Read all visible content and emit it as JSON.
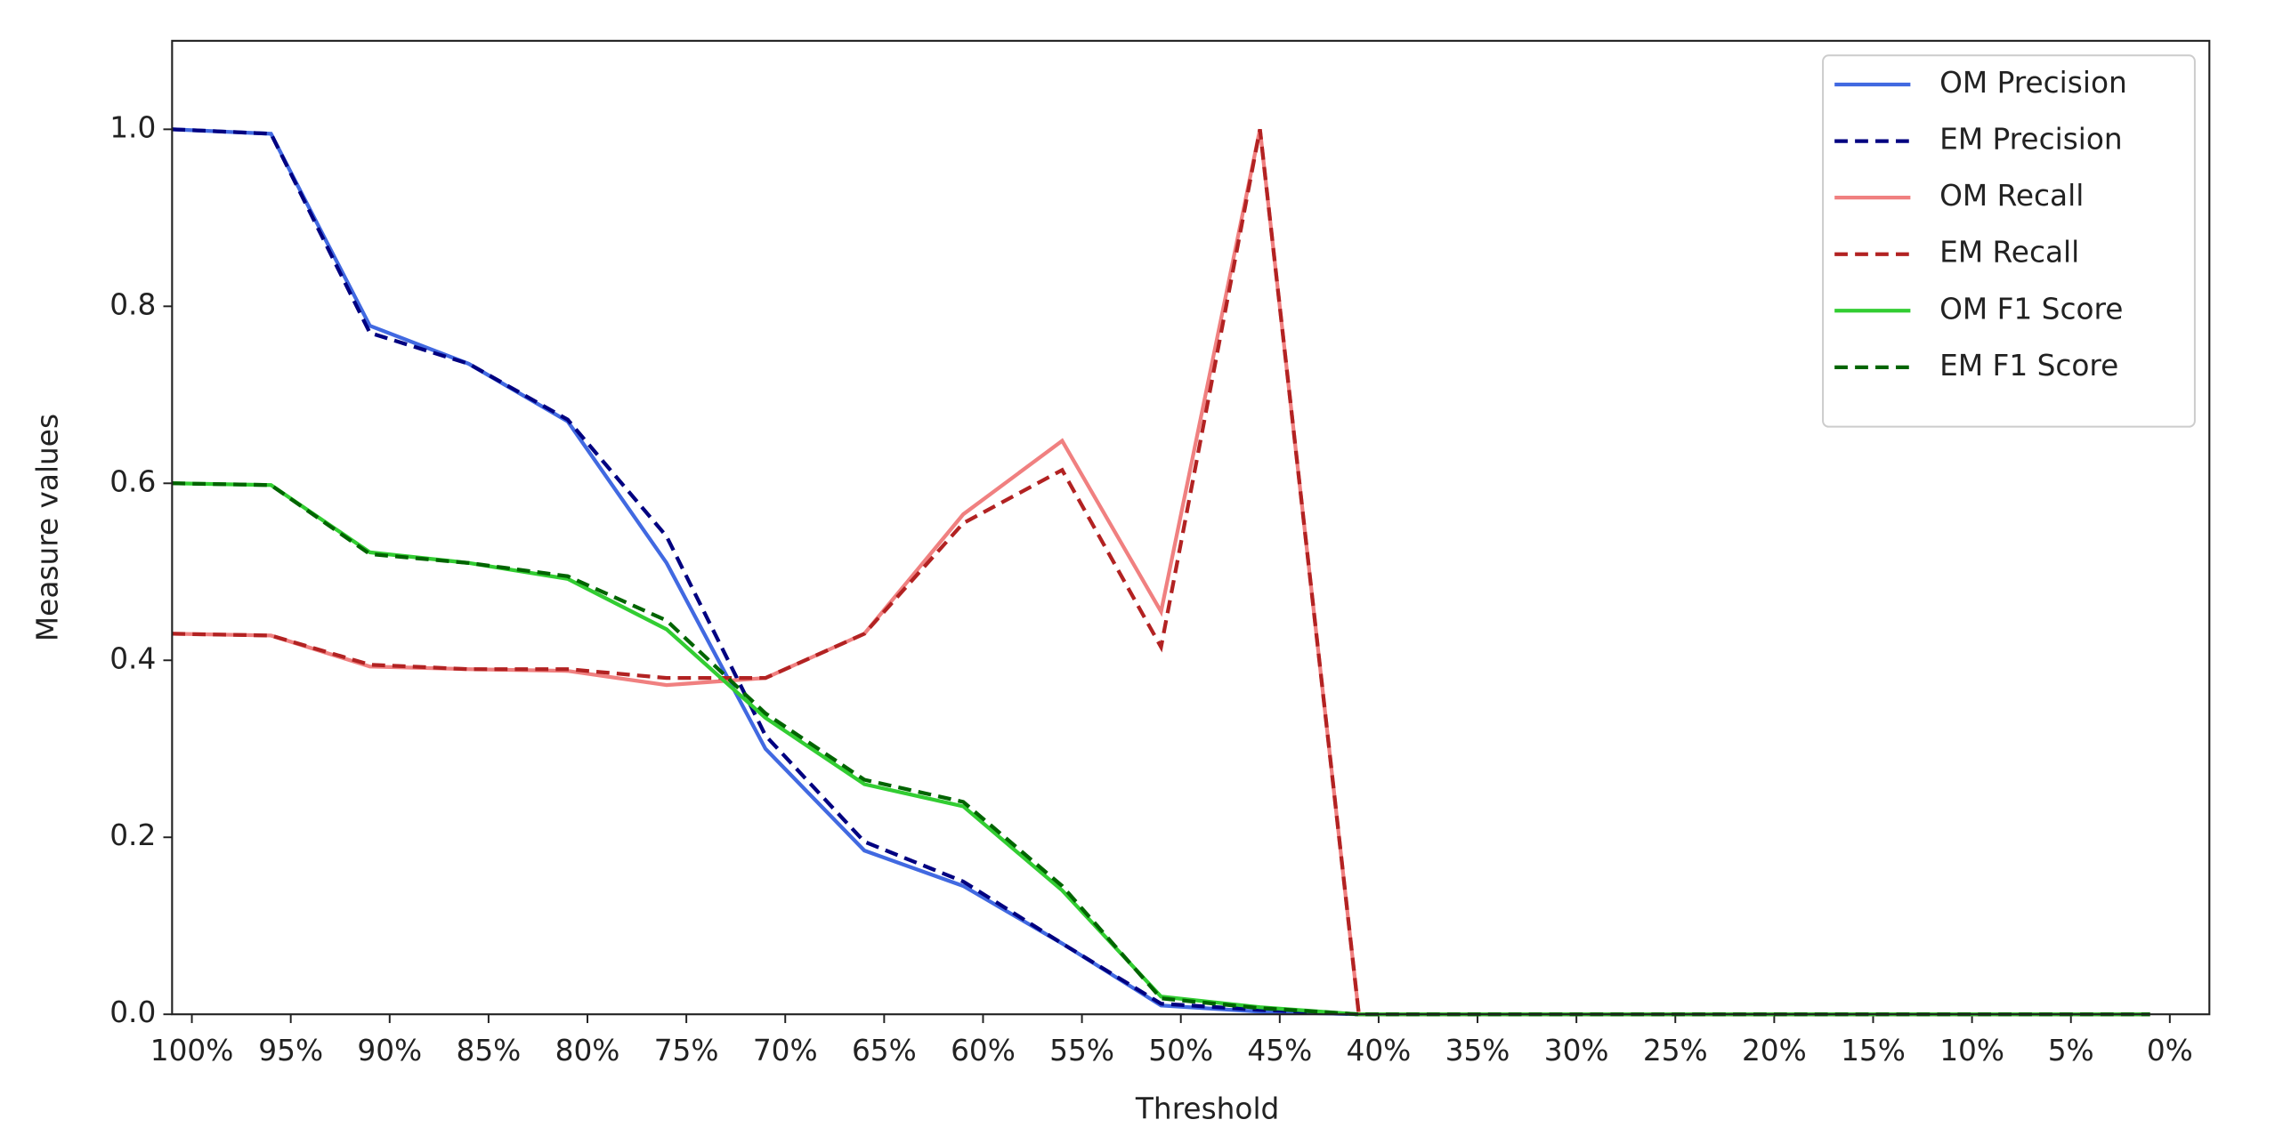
{
  "chart_data": {
    "type": "line",
    "x_label": "Threshold",
    "y_label": "Measure values",
    "x": [
      101,
      96,
      91,
      86,
      81,
      76,
      71,
      66,
      61,
      56,
      51,
      46,
      41,
      36,
      31,
      26,
      21,
      16,
      11,
      6,
      1
    ],
    "xlim": [
      101,
      -2
    ],
    "ylim": [
      0,
      1.1
    ],
    "xticks": [
      {
        "value": 100,
        "label": "100%"
      },
      {
        "value": 95,
        "label": "95%"
      },
      {
        "value": 90,
        "label": "90%"
      },
      {
        "value": 85,
        "label": "85%"
      },
      {
        "value": 80,
        "label": "80%"
      },
      {
        "value": 75,
        "label": "75%"
      },
      {
        "value": 70,
        "label": "70%"
      },
      {
        "value": 65,
        "label": "65%"
      },
      {
        "value": 60,
        "label": "60%"
      },
      {
        "value": 55,
        "label": "55%"
      },
      {
        "value": 50,
        "label": "50%"
      },
      {
        "value": 45,
        "label": "45%"
      },
      {
        "value": 40,
        "label": "40%"
      },
      {
        "value": 35,
        "label": "35%"
      },
      {
        "value": 30,
        "label": "30%"
      },
      {
        "value": 25,
        "label": "25%"
      },
      {
        "value": 20,
        "label": "20%"
      },
      {
        "value": 15,
        "label": "15%"
      },
      {
        "value": 10,
        "label": "10%"
      },
      {
        "value": 5,
        "label": "5%"
      },
      {
        "value": 0,
        "label": "0%"
      }
    ],
    "yticks": [
      {
        "value": 0,
        "label": "0.0"
      },
      {
        "value": 0.2,
        "label": "0.2"
      },
      {
        "value": 0.4,
        "label": "0.4"
      },
      {
        "value": 0.6,
        "label": "0.6"
      },
      {
        "value": 0.8,
        "label": "0.8"
      },
      {
        "value": 1,
        "label": "1.0"
      }
    ],
    "grid": false,
    "legend": "upper right",
    "series": [
      {
        "name": "OM Precision",
        "color": "#4169e1",
        "style": "solid",
        "values": [
          1.0,
          0.995,
          0.778,
          0.735,
          0.67,
          0.51,
          0.3,
          0.185,
          0.145,
          0.08,
          0.01,
          0.003,
          0,
          0,
          0,
          0,
          0,
          0,
          0,
          0,
          0
        ]
      },
      {
        "name": "EM Precision",
        "color": "#000080",
        "style": "dashed",
        "values": [
          1.0,
          0.995,
          0.77,
          0.735,
          0.672,
          0.54,
          0.315,
          0.195,
          0.15,
          0.08,
          0.012,
          0.005,
          0,
          0,
          0,
          0,
          0,
          0,
          0,
          0,
          0
        ]
      },
      {
        "name": "OM Recall",
        "color": "#f08080",
        "style": "solid",
        "values": [
          0.43,
          0.428,
          0.393,
          0.39,
          0.388,
          0.372,
          0.38,
          0.43,
          0.565,
          0.648,
          0.455,
          1.0,
          0,
          0,
          0,
          0,
          0,
          0,
          0,
          0,
          0
        ]
      },
      {
        "name": "EM Recall",
        "color": "#b22222",
        "style": "dashed",
        "values": [
          0.43,
          0.428,
          0.395,
          0.39,
          0.39,
          0.38,
          0.38,
          0.43,
          0.555,
          0.615,
          0.415,
          1.0,
          0,
          0,
          0,
          0,
          0,
          0,
          0,
          0,
          0
        ]
      },
      {
        "name": "OM F1 Score",
        "color": "#32cd32",
        "style": "solid",
        "values": [
          0.6,
          0.598,
          0.522,
          0.51,
          0.492,
          0.435,
          0.335,
          0.26,
          0.235,
          0.14,
          0.02,
          0.008,
          0,
          0,
          0,
          0,
          0,
          0,
          0,
          0,
          0
        ]
      },
      {
        "name": "EM F1 Score",
        "color": "#006400",
        "style": "dashed",
        "values": [
          0.6,
          0.598,
          0.52,
          0.51,
          0.495,
          0.445,
          0.34,
          0.265,
          0.24,
          0.145,
          0.018,
          0.007,
          0,
          0,
          0,
          0,
          0,
          0,
          0,
          0,
          0
        ]
      }
    ]
  }
}
